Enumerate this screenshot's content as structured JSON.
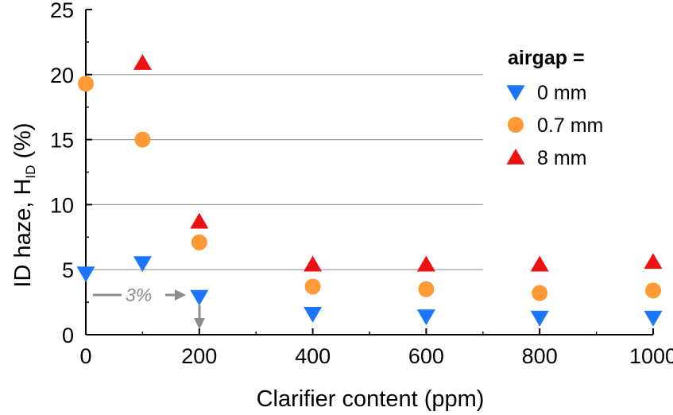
{
  "chart_data": {
    "type": "scatter",
    "xlabel": "Clarifier content (ppm)",
    "ylabel_main": "ID haze, H",
    "ylabel_sub": "ID",
    "ylabel_unit": " (%)",
    "xlim": [
      0,
      1000
    ],
    "ylim": [
      0,
      25
    ],
    "x_ticks": [
      0,
      200,
      400,
      600,
      800,
      1000
    ],
    "x_tick_labels": [
      "0",
      "200",
      "400",
      "600",
      "800",
      "1000"
    ],
    "y_ticks": [
      0,
      5,
      10,
      15,
      20,
      25
    ],
    "y_tick_labels": [
      "0",
      "5",
      "10",
      "15",
      "20",
      "25"
    ],
    "grid_y": [
      5,
      10,
      15,
      20
    ],
    "legend": {
      "title": "airgap =",
      "position": "top-right"
    },
    "series": [
      {
        "name": "0 mm",
        "marker": "triangle-down",
        "color": "#1a75ff",
        "x": [
          0,
          100,
          200,
          400,
          600,
          800,
          1000
        ],
        "y": [
          4.7,
          5.5,
          2.9,
          1.6,
          1.4,
          1.3,
          1.3
        ]
      },
      {
        "name": "0.7 mm",
        "marker": "circle",
        "color": "#ff9933",
        "x": [
          0,
          100,
          200,
          400,
          600,
          800,
          1000
        ],
        "y": [
          19.3,
          15.0,
          7.1,
          3.7,
          3.5,
          3.2,
          3.4
        ]
      },
      {
        "name": "8 mm",
        "marker": "triangle-up",
        "color": "#ee1111",
        "x": [
          100,
          200,
          400,
          600,
          800,
          1000
        ],
        "y": [
          20.9,
          8.7,
          5.4,
          5.4,
          5.4,
          5.6
        ]
      }
    ],
    "annotation": {
      "text": "3%",
      "color": "#8c8c8c"
    }
  }
}
